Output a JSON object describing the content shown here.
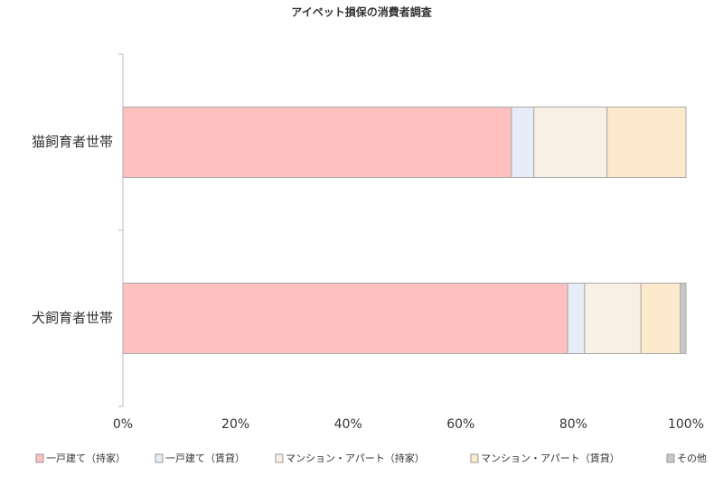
{
  "chart_data": {
    "type": "stacked-barh",
    "title": "アイペット損保の消費者調査",
    "categories": [
      "猫飼育者世帯",
      "犬飼育者世帯"
    ],
    "series": [
      {
        "name": "一戸建て（持家）",
        "color": "#ffc0c0",
        "values": [
          69,
          79
        ]
      },
      {
        "name": "一戸建て（賃貸）",
        "color": "#e6ecf8",
        "values": [
          4,
          3
        ]
      },
      {
        "name": "マンション・アパート（持家）",
        "color": "#f8f0e4",
        "values": [
          13,
          10
        ]
      },
      {
        "name": "マンション・アパート（賃貸）",
        "color": "#fde9cc",
        "values": [
          14,
          7
        ]
      },
      {
        "name": "その他",
        "color": "#c8c8c8",
        "values": [
          0,
          1
        ]
      }
    ],
    "xlim": [
      0,
      100
    ],
    "xticks": [
      {
        "value": 0,
        "label": "0%"
      },
      {
        "value": 20,
        "label": "20%"
      },
      {
        "value": 40,
        "label": "40%"
      },
      {
        "value": 60,
        "label": "60%"
      },
      {
        "value": 80,
        "label": "80%"
      },
      {
        "value": 100,
        "label": "100%"
      }
    ],
    "legend": "bottom"
  }
}
